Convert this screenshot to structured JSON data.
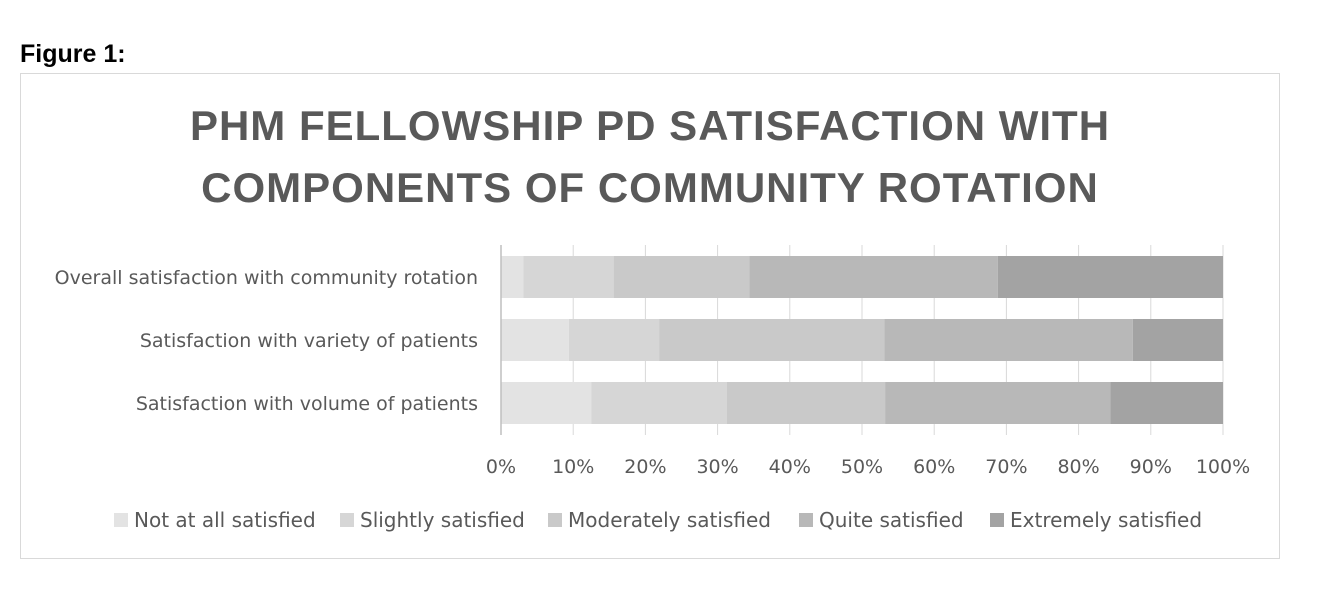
{
  "figure_label": "Figure 1:",
  "chart_data": {
    "type": "bar",
    "orientation": "horizontal",
    "stacked": "percent",
    "title_lines": [
      "PHM FELLOWSHIP PD SATISFACTION WITH",
      "COMPONENTS OF COMMUNITY ROTATION"
    ],
    "categories": [
      "Overall satisfaction with community rotation",
      "Satisfaction with variety of patients",
      "Satisfaction with volume of patients"
    ],
    "series": [
      {
        "name": "Not at all satisfied",
        "color": "#e3e3e3",
        "values": [
          3.1,
          9.4,
          12.5
        ]
      },
      {
        "name": "Slightly satisfied",
        "color": "#d6d6d6",
        "values": [
          12.5,
          12.5,
          18.8
        ]
      },
      {
        "name": "Moderately satisfied",
        "color": "#c9c9c9",
        "values": [
          18.8,
          31.2,
          21.9
        ]
      },
      {
        "name": "Quite satisfied",
        "color": "#b8b8b8",
        "values": [
          34.4,
          34.4,
          31.2
        ]
      },
      {
        "name": "Extremely satisfied",
        "color": "#a3a3a3",
        "values": [
          31.2,
          12.5,
          15.6
        ]
      }
    ],
    "x_ticks": [
      "0%",
      "10%",
      "20%",
      "30%",
      "40%",
      "50%",
      "60%",
      "70%",
      "80%",
      "90%",
      "100%"
    ],
    "xlim": [
      0,
      100
    ],
    "grid": true,
    "legend_position": "bottom"
  }
}
